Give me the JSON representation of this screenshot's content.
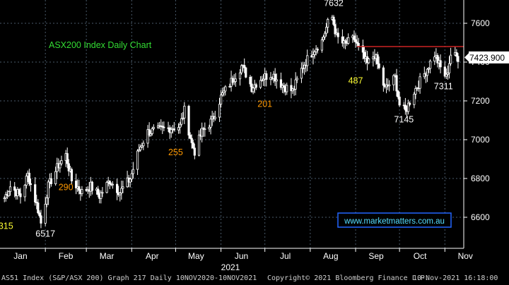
{
  "chart_data": {
    "type": "candlestick",
    "title": "ASX200 Index Daily Chart",
    "watermark": "www.marketmatters.com.au",
    "ylim": [
      6440,
      7720
    ],
    "y_ticks": [
      6600,
      6800,
      7000,
      7200,
      7400,
      7600
    ],
    "y_tick_labels": [
      "6600",
      "6800",
      "7000",
      "7200",
      "7400",
      "7600"
    ],
    "x_labels": [
      "Jan",
      "Feb",
      "Mar",
      "Apr",
      "May",
      "Jun",
      "Jul",
      "Aug",
      "Sep",
      "Oct",
      "Nov"
    ],
    "year_label": "2021",
    "last_price": {
      "value": 7423.9,
      "label": "7423.900"
    },
    "resistance_level": 7480,
    "price_path": [
      [
        "2021-01-04",
        6700
      ],
      [
        "2021-01-08",
        6760
      ],
      [
        "2021-01-15",
        6710
      ],
      [
        "2021-01-20",
        6820
      ],
      [
        "2021-01-27",
        6640
      ],
      [
        "2021-01-29",
        6570
      ],
      [
        "2021-02-03",
        6760
      ],
      [
        "2021-02-10",
        6870
      ],
      [
        "2021-02-15",
        6920
      ],
      [
        "2021-02-19",
        6790
      ],
      [
        "2021-02-26",
        6730
      ],
      [
        "2021-03-04",
        6760
      ],
      [
        "2021-03-10",
        6710
      ],
      [
        "2021-03-17",
        6790
      ],
      [
        "2021-03-24",
        6730
      ],
      [
        "2021-03-31",
        6800
      ],
      [
        "2021-04-06",
        6950
      ],
      [
        "2021-04-12",
        7040
      ],
      [
        "2021-04-20",
        7050
      ],
      [
        "2021-04-27",
        7060
      ],
      [
        "2021-05-04",
        7070
      ],
      [
        "2021-05-07",
        7150
      ],
      [
        "2021-05-12",
        6980
      ],
      [
        "2021-05-14",
        6940
      ],
      [
        "2021-05-19",
        7040
      ],
      [
        "2021-05-26",
        7100
      ],
      [
        "2021-06-01",
        7220
      ],
      [
        "2021-06-08",
        7300
      ],
      [
        "2021-06-15",
        7380
      ],
      [
        "2021-06-18",
        7340
      ],
      [
        "2021-06-22",
        7270
      ],
      [
        "2021-06-29",
        7320
      ],
      [
        "2021-07-06",
        7340
      ],
      [
        "2021-07-13",
        7280
      ],
      [
        "2021-07-20",
        7250
      ],
      [
        "2021-07-27",
        7380
      ],
      [
        "2021-08-03",
        7460
      ],
      [
        "2021-08-09",
        7510
      ],
      [
        "2021-08-13",
        7600
      ],
      [
        "2021-08-16",
        7632
      ],
      [
        "2021-08-19",
        7530
      ],
      [
        "2021-08-24",
        7490
      ],
      [
        "2021-08-31",
        7520
      ],
      [
        "2021-09-03",
        7470
      ],
      [
        "2021-09-09",
        7390
      ],
      [
        "2021-09-14",
        7440
      ],
      [
        "2021-09-21",
        7260
      ],
      [
        "2021-09-28",
        7320
      ],
      [
        "2021-10-01",
        7180
      ],
      [
        "2021-10-05",
        7145
      ],
      [
        "2021-10-11",
        7250
      ],
      [
        "2021-10-18",
        7340
      ],
      [
        "2021-10-25",
        7440
      ],
      [
        "2021-10-29",
        7370
      ],
      [
        "2021-11-02",
        7320
      ],
      [
        "2021-11-05",
        7440
      ],
      [
        "2021-11-10",
        7423
      ]
    ],
    "annotations": [
      {
        "text": "315",
        "date": "2021-01-05",
        "y": 6540,
        "color": "#ffff33"
      },
      {
        "text": "6517",
        "date": "2021-02-01",
        "y": 6500,
        "color": "#ffffff"
      },
      {
        "text": "290",
        "date": "2021-02-15",
        "y": 6740,
        "color": "#ff9900"
      },
      {
        "text": "255",
        "date": "2021-05-01",
        "y": 6920,
        "color": "#ff9900"
      },
      {
        "text": "201",
        "date": "2021-07-01",
        "y": 7170,
        "color": "#ff9900"
      },
      {
        "text": "7632",
        "date": "2021-08-17",
        "y": 7690,
        "color": "#ffffff"
      },
      {
        "text": "487",
        "date": "2021-09-01",
        "y": 7290,
        "color": "#ffff33"
      },
      {
        "text": "7145",
        "date": "2021-10-04",
        "y": 7090,
        "color": "#ffffff"
      },
      {
        "text": "7311",
        "date": "2021-10-31",
        "y": 7260,
        "color": "#ffffff"
      }
    ]
  },
  "footer": {
    "left": "AS51 Index (S&P/ASX 200) Graph 217  Daily 10NOV2020-10NOV2021",
    "center": "Copyright© 2021 Bloomberg Finance L.P.",
    "right": "10-Nov-2021 16:18:00"
  },
  "colors": {
    "background": "#000000",
    "grid": "#4a5a6a",
    "candle_outline": "#ffffff",
    "resistance_line": "#cc2222",
    "title": "#33dd33",
    "watermark_border": "#2266ff",
    "watermark_text": "#55ddff",
    "axis_text": "#ffffff"
  }
}
